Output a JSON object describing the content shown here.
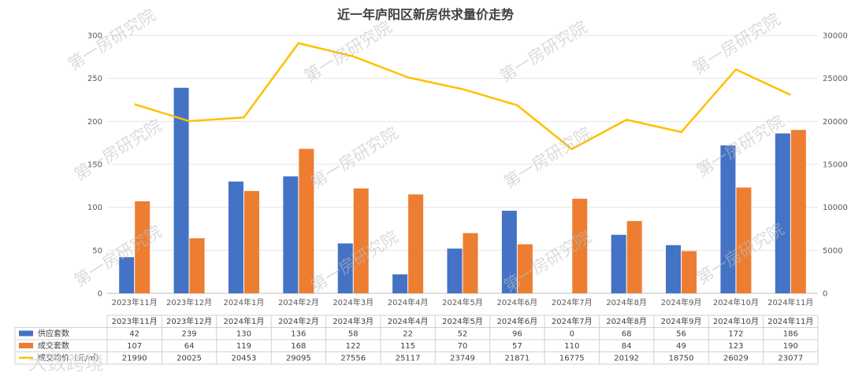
{
  "chart_data": {
    "type": "bar",
    "title": "近一年庐阳区新房供求量价走势",
    "categories": [
      "2023年11月",
      "2023年12月",
      "2024年1月",
      "2024年2月",
      "2024年3月",
      "2024年4月",
      "2024年5月",
      "2024年6月",
      "2024年7月",
      "2024年8月",
      "2024年9月",
      "2024年10月",
      "2024年11月"
    ],
    "series": [
      {
        "name": "供应套数",
        "type": "bar",
        "axis": "left",
        "color": "#4472C4",
        "values": [
          42,
          239,
          130,
          136,
          58,
          22,
          52,
          96,
          0,
          68,
          56,
          172,
          186
        ]
      },
      {
        "name": "成交套数",
        "type": "bar",
        "axis": "left",
        "color": "#ED7D31",
        "values": [
          107,
          64,
          119,
          168,
          122,
          115,
          70,
          57,
          110,
          84,
          49,
          123,
          190
        ]
      },
      {
        "name": "成交均价（元/㎡）",
        "type": "line",
        "axis": "right",
        "color": "#FFC000",
        "values": [
          21990,
          20025,
          20453,
          29095,
          27556,
          25117,
          23749,
          21871,
          16775,
          20192,
          18750,
          26029,
          23077
        ]
      }
    ],
    "ylim": [
      0,
      300
    ],
    "yticks": [
      "0",
      "50",
      "100",
      "150",
      "200",
      "250",
      "300"
    ],
    "y2lim": [
      0,
      30000
    ],
    "y2ticks": [
      "0",
      "5000",
      "10000",
      "15000",
      "20000",
      "25000",
      "30000"
    ],
    "grid": true,
    "legend": "data-table"
  },
  "watermark": "第一房研究院",
  "source_watermark": "大数跨境"
}
